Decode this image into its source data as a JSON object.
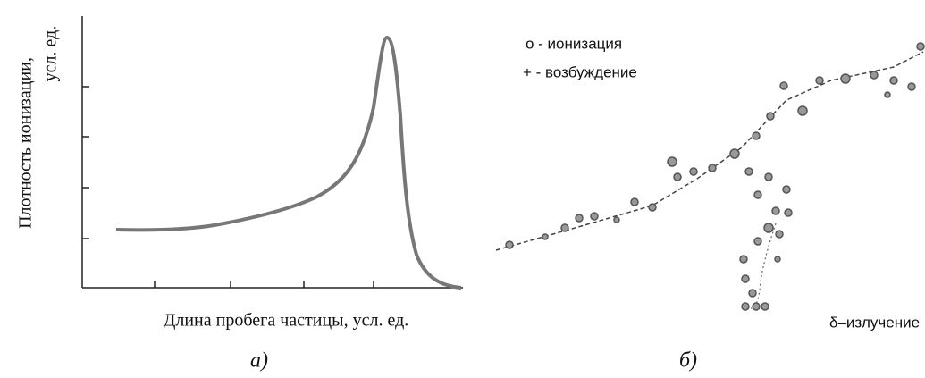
{
  "panel_a": {
    "y_label_line1": "Плотность ионизации,",
    "y_label_line2": "усл. ед.",
    "x_label": "Длина пробега частицы, усл. ед.",
    "caption": "а)"
  },
  "panel_b": {
    "legend": [
      "о - ионизация",
      "+ - возбуждение"
    ],
    "annotation": "δ–излучение",
    "caption": "б)"
  }
}
